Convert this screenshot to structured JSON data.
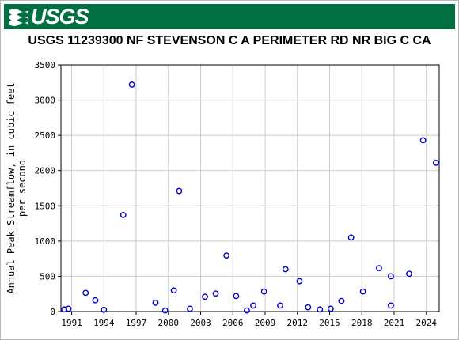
{
  "header": {
    "logo_text": "USGS",
    "brand_color": "#006f41"
  },
  "chart_data": {
    "type": "scatter",
    "title": "USGS 11239300 NF STEVENSON C A PERIMETER RD NR BIG C CA",
    "xlabel": "",
    "ylabel_lines": [
      "Annual Peak Streamflow, in cubic feet",
      "per second"
    ],
    "xlim": [
      1990,
      2025.2
    ],
    "ylim": [
      0,
      3500
    ],
    "xticks": [
      1991,
      1994,
      1997,
      2000,
      2003,
      2006,
      2009,
      2012,
      2015,
      2018,
      2021,
      2024
    ],
    "yticks": [
      0,
      500,
      1000,
      1500,
      2000,
      2500,
      3000,
      3500
    ],
    "grid": true,
    "marker_color": "#0000cc",
    "points": [
      {
        "x": 1990.3,
        "y": 30
      },
      {
        "x": 1990.7,
        "y": 40
      },
      {
        "x": 1992.3,
        "y": 265
      },
      {
        "x": 1993.2,
        "y": 160
      },
      {
        "x": 1994.0,
        "y": 25
      },
      {
        "x": 1995.8,
        "y": 1370
      },
      {
        "x": 1996.6,
        "y": 3220
      },
      {
        "x": 1998.8,
        "y": 125
      },
      {
        "x": 1999.7,
        "y": 15
      },
      {
        "x": 2000.5,
        "y": 300
      },
      {
        "x": 2001.0,
        "y": 1710
      },
      {
        "x": 2002.0,
        "y": 40
      },
      {
        "x": 2003.4,
        "y": 210
      },
      {
        "x": 2004.4,
        "y": 255
      },
      {
        "x": 2005.4,
        "y": 795
      },
      {
        "x": 2006.3,
        "y": 220
      },
      {
        "x": 2007.3,
        "y": 15
      },
      {
        "x": 2007.9,
        "y": 85
      },
      {
        "x": 2008.9,
        "y": 285
      },
      {
        "x": 2010.4,
        "y": 85
      },
      {
        "x": 2010.9,
        "y": 600
      },
      {
        "x": 2012.2,
        "y": 430
      },
      {
        "x": 2013.0,
        "y": 60
      },
      {
        "x": 2014.1,
        "y": 30
      },
      {
        "x": 2015.1,
        "y": 40
      },
      {
        "x": 2016.1,
        "y": 150
      },
      {
        "x": 2017.0,
        "y": 1050
      },
      {
        "x": 2018.1,
        "y": 285
      },
      {
        "x": 2019.6,
        "y": 615
      },
      {
        "x": 2020.7,
        "y": 85
      },
      {
        "x": 2020.7,
        "y": 500
      },
      {
        "x": 2022.4,
        "y": 535
      },
      {
        "x": 2023.7,
        "y": 2430
      },
      {
        "x": 2024.9,
        "y": 2110
      }
    ]
  }
}
